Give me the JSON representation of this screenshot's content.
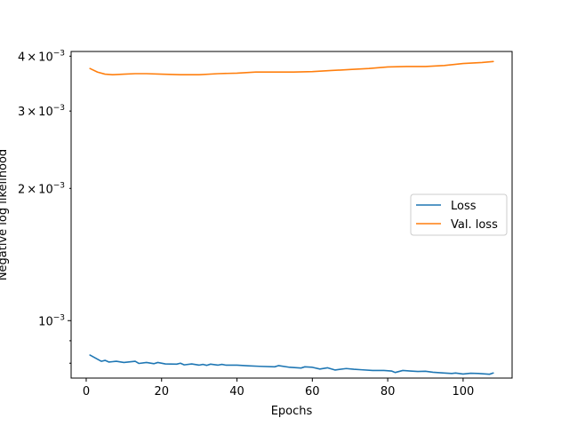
{
  "chart_data": {
    "type": "line",
    "title": "",
    "xlabel": "Epochs",
    "ylabel": "Negative log likelihood",
    "yscale": "log",
    "xlim": [
      -4,
      113
    ],
    "ylim": [
      0.00074,
      0.0041
    ],
    "grid": false,
    "legend_position": "center-right",
    "x_ticks": [
      0,
      20,
      40,
      60,
      80,
      100
    ],
    "x_tick_labels": [
      "0",
      "20",
      "40",
      "60",
      "80",
      "100"
    ],
    "y_major_ticks": [
      0.001
    ],
    "y_major_tick_labels": [
      {
        "base": "10",
        "exp": "−3"
      }
    ],
    "y_minor_ticks": [
      0.002,
      0.003,
      0.004
    ],
    "y_minor_tick_labels": [
      {
        "mant": "2",
        "base": "10",
        "exp": "−3"
      },
      {
        "mant": "3",
        "base": "10",
        "exp": "−3"
      },
      {
        "mant": "4",
        "base": "10",
        "exp": "−3"
      }
    ],
    "y_unlabeled_minor_ticks": [
      0.0008,
      0.0009
    ],
    "series": [
      {
        "name": "Loss",
        "color": "#1f77b4",
        "x": [
          1,
          4,
          5,
          6,
          8,
          10,
          13,
          14,
          16,
          18,
          19,
          21,
          24,
          25,
          26,
          28,
          30,
          31,
          32,
          33,
          35,
          36,
          37,
          40,
          43,
          46,
          50,
          51,
          54,
          57,
          58,
          60,
          62,
          64,
          66,
          69,
          71,
          73,
          76,
          79,
          81,
          82,
          84,
          86,
          88,
          90,
          92,
          95,
          97,
          98,
          100,
          102,
          104,
          107,
          108
        ],
        "y": [
          0.000835,
          0.000808,
          0.000812,
          0.000805,
          0.000808,
          0.000803,
          0.000808,
          0.000799,
          0.000803,
          0.000798,
          0.000803,
          0.000797,
          0.000796,
          0.0008,
          0.000793,
          0.000797,
          0.000792,
          0.000795,
          0.000791,
          0.000796,
          0.000792,
          0.000795,
          0.000792,
          0.000792,
          0.000789,
          0.000787,
          0.000785,
          0.00079,
          0.000783,
          0.00078,
          0.000785,
          0.000783,
          0.000776,
          0.000781,
          0.000772,
          0.000778,
          0.000775,
          0.000773,
          0.00077,
          0.00077,
          0.000768,
          0.000762,
          0.00077,
          0.000768,
          0.000766,
          0.000767,
          0.000763,
          0.00076,
          0.000758,
          0.00076,
          0.000756,
          0.000759,
          0.000758,
          0.000755,
          0.00076
        ]
      },
      {
        "name": "Val. loss",
        "color": "#ff7f0e",
        "x": [
          1,
          3,
          5,
          7,
          10,
          13,
          16,
          20,
          25,
          30,
          35,
          40,
          45,
          50,
          55,
          60,
          65,
          70,
          75,
          80,
          85,
          90,
          95,
          100,
          105,
          108
        ],
        "y": [
          0.00375,
          0.00368,
          0.00364,
          0.00363,
          0.00364,
          0.00365,
          0.00365,
          0.00364,
          0.00363,
          0.00363,
          0.00365,
          0.00366,
          0.00368,
          0.00368,
          0.00368,
          0.00369,
          0.00371,
          0.00373,
          0.00375,
          0.00378,
          0.00379,
          0.00379,
          0.00381,
          0.00385,
          0.00387,
          0.00389
        ]
      }
    ]
  }
}
